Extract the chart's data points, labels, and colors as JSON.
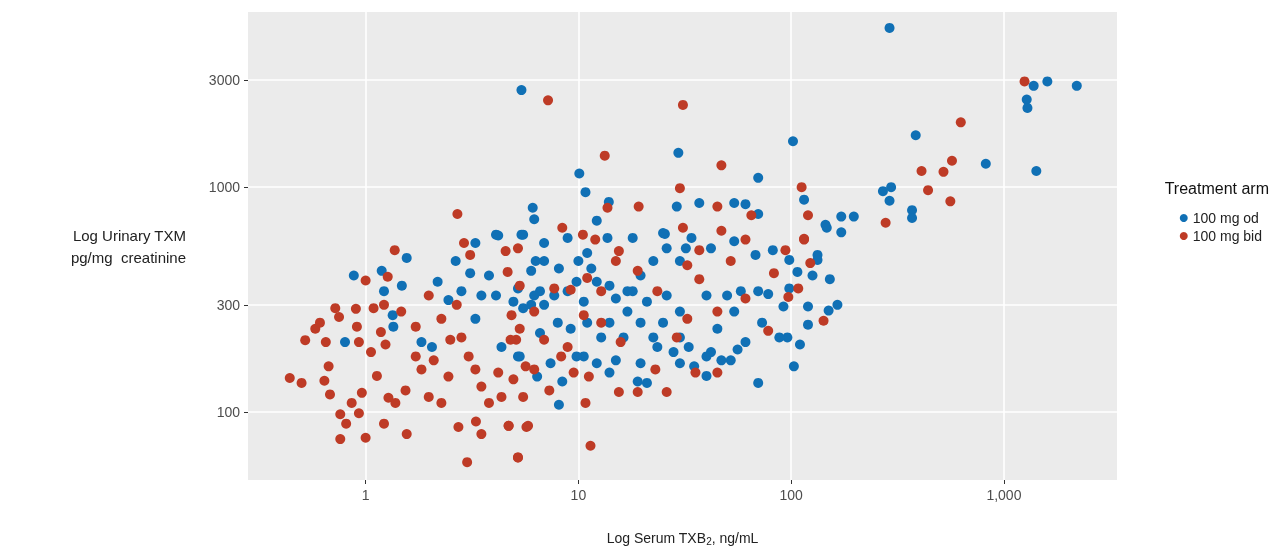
{
  "chart_data": {
    "type": "scatter",
    "xlabel": "Log Serum TXB$_{2}$, ng/mL",
    "ylabel": "Log Urinary TXM\npg/mg  creatinine",
    "legend_title": "Treatment arm",
    "log": "xy",
    "grid": true,
    "legend": "right",
    "marker": "circle",
    "xlim": [
      0.28,
      3400
    ],
    "ylim": [
      50,
      6000
    ],
    "xticks": [
      1,
      10,
      100,
      {
        "value": 1000,
        "label": "1,000"
      }
    ],
    "yticks": [
      100,
      300,
      1000,
      3000
    ],
    "series": [
      {
        "name": "100 mg od",
        "color": "#1070b5",
        "x": [
          290,
          5.4,
          1380,
          1600,
          2200,
          1280,
          1290,
          1420,
          385,
          822,
          102,
          270,
          295,
          290,
          370,
          370,
          70,
          115,
          145,
          172,
          197,
          172,
          37,
          54,
          61,
          70,
          29.5,
          10.1,
          10.8,
          6.1,
          6.2,
          13.9,
          12.2,
          29,
          4.2,
          25.5,
          0.88,
          0.8,
          1.19,
          1.22,
          1.56,
          1.48,
          1.34,
          1.35,
          2.18,
          2.65,
          3.28,
          4.1,
          3.1,
          3.8,
          2.45,
          2.82,
          3.5,
          4.1,
          5.4,
          6.3,
          5.2,
          6.0,
          6.6,
          3.28,
          5.2,
          4.35,
          2.05,
          1.83,
          5.5,
          6.9,
          8.9,
          6.0,
          6.9,
          8.1,
          10,
          11,
          13.7,
          18,
          25,
          34,
          42,
          54,
          68,
          82,
          98,
          133,
          147,
          133,
          152,
          165,
          150,
          120,
          120,
          126,
          107,
          98,
          92,
          110,
          103,
          96,
          88,
          73,
          78,
          70,
          70,
          61,
          56,
          52,
          47,
          42,
          40,
          35,
          30,
          28,
          23.5,
          21,
          19,
          14,
          15,
          12.2,
          10.6,
          8.4,
          8.1,
          7.4,
          6.4,
          40,
          45,
          54,
          58,
          50,
          40,
          37,
          30,
          32,
          26,
          22.5,
          19.6,
          18,
          21,
          26,
          30,
          25,
          22.5,
          19.6,
          17,
          15,
          14,
          16.3,
          12.8,
          11,
          10.6,
          9.8,
          12.2,
          14,
          11.5,
          8.9,
          7.7,
          6.9,
          6.2,
          5.5,
          4.95,
          8,
          9.2,
          6.6,
          5.3,
          9.8,
          19.6,
          30,
          33,
          17
        ],
        "values": [
          5100,
          2700,
          2820,
          2950,
          2820,
          2450,
          2250,
          1180,
          1700,
          1270,
          1600,
          960,
          1000,
          870,
          790,
          730,
          1100,
          880,
          680,
          740,
          740,
          630,
          850,
          850,
          840,
          760,
          1420,
          1150,
          950,
          810,
          720,
          860,
          710,
          820,
          610,
          620,
          405,
          205,
          425,
          345,
          485,
          365,
          270,
          240,
          380,
          470,
          565,
          615,
          415,
          405,
          315,
          345,
          330,
          330,
          615,
          470,
          355,
          300,
          345,
          260,
          177,
          195,
          195,
          205,
          615,
          565,
          595,
          425,
          470,
          435,
          470,
          510,
          595,
          595,
          625,
          595,
          535,
          575,
          500,
          525,
          475,
          500,
          660,
          475,
          390,
          300,
          283,
          295,
          245,
          405,
          420,
          355,
          295,
          200,
          160,
          215,
          215,
          250,
          335,
          345,
          135,
          205,
          190,
          170,
          170,
          185,
          145,
          160,
          165,
          185,
          195,
          135,
          137,
          150,
          170,
          165,
          177,
          137,
          108,
          165,
          144,
          177,
          235,
          280,
          345,
          330,
          330,
          null,
          470,
          535,
          535,
          470,
          405,
          345,
          310,
          330,
          280,
          250,
          215,
          250,
          280,
          320,
          250,
          215,
          215,
          250,
          310,
          380,
          380,
          365,
          435,
          345,
          330,
          300,
          330,
          290,
          310,
          250,
          235,
          225,
          177,
          177,
          165,
          215,
          195,
          345
        ]
      },
      {
        "name": "100 mg bid",
        "color": "#be3b26",
        "x": [
          1250,
          627,
          570,
          410,
          520,
          440,
          560,
          278,
          112,
          120,
          115,
          47,
          45,
          65,
          7.2,
          31,
          13.3,
          30,
          2.7,
          13.7,
          19.2,
          8.4,
          0.44,
          0.5,
          0.52,
          0.58,
          0.61,
          0.65,
          0.67,
          0.64,
          0.68,
          0.72,
          0.75,
          0.76,
          0.76,
          0.81,
          0.9,
          0.91,
          0.93,
          0.86,
          0.93,
          0.96,
          1.0,
          1.0,
          1.06,
          1.09,
          1.13,
          1.18,
          1.22,
          1.22,
          1.27,
          1.24,
          1.37,
          1.28,
          1.38,
          1.56,
          1.47,
          1.72,
          1.54,
          1.83,
          1.72,
          1.98,
          2.27,
          2.09,
          2.45,
          2.73,
          3.0,
          2.9,
          3.1,
          2.68,
          2.82,
          3.05,
          3.28,
          3.5,
          3.3,
          3.5,
          3.8,
          4.2,
          4.35,
          4.7,
          5.2,
          5.7,
          4.55,
          4.85,
          5.1,
          5.65,
          1.98,
          2.27,
          2.5,
          61,
          115,
          47,
          31,
          37,
          94,
          123,
          108,
          97,
          142,
          78,
          61,
          83,
          52,
          45,
          45,
          35.5,
          32.5,
          29,
          26,
          23,
          19,
          15.5,
          11.4,
          10.8,
          11.2,
          9.5,
          8.3,
          7.3,
          6.2,
          5.8,
          4.7,
          5.2,
          5.5,
          4.95,
          4.8,
          5.3,
          4.65,
          5.2,
          10.5,
          12,
          15.5,
          15,
          19,
          23.5,
          37,
          32.5,
          12.8,
          11,
          9.2,
          7.7,
          5.3,
          12.8,
          15.8,
          10.6,
          8.9,
          6.9,
          6.2
        ],
        "values": [
          2950,
          1940,
          1310,
          1180,
          1170,
          970,
          865,
          695,
          1000,
          750,
          590,
          1250,
          820,
          750,
          2430,
          2320,
          1380,
          990,
          760,
          810,
          820,
          660,
          142,
          135,
          209,
          235,
          250,
          205,
          160,
          138,
          120,
          290,
          265,
          98,
          76,
          89,
          288,
          240,
          205,
          110,
          99,
          122,
          385,
          77,
          185,
          290,
          145,
          227,
          300,
          89,
          400,
          200,
          525,
          116,
          110,
          80,
          280,
          240,
          125,
          155,
          177,
          117,
          110,
          170,
          144,
          86,
          60,
          565,
          500,
          300,
          215,
          177,
          155,
          130,
          91,
          80,
          110,
          150,
          117,
          87,
          63,
          86,
          520,
          270,
          210,
          160,
          330,
          260,
          210,
          585,
          585,
          640,
          660,
          525,
          525,
          460,
          355,
          325,
          255,
          230,
          320,
          415,
          470,
          280,
          150,
          150,
          260,
          215,
          123,
          155,
          123,
          123,
          71,
          110,
          144,
          150,
          177,
          125,
          155,
          87,
          87,
          63,
          117,
          140,
          210,
          235,
          420,
          535,
          615,
          585,
          520,
          470,
          425,
          345,
          390,
          450,
          345,
          395,
          350,
          355,
          365,
          250,
          205,
          270,
          195,
          210,
          280
        ]
      }
    ]
  }
}
